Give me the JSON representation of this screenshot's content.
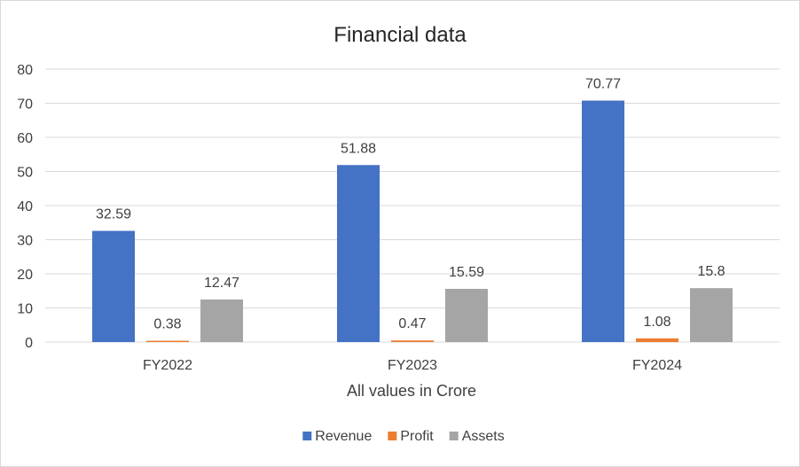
{
  "chart_data": {
    "type": "bar",
    "title": "Financial data",
    "xlabel": "All values in Crore",
    "ylabel": "",
    "categories": [
      "FY2022",
      "FY2023",
      "FY2024"
    ],
    "series": [
      {
        "name": "Revenue",
        "values": [
          32.59,
          51.88,
          70.77
        ],
        "color": "#4472c4"
      },
      {
        "name": "Profit",
        "values": [
          0.38,
          0.47,
          1.08
        ],
        "color": "#ed7d31"
      },
      {
        "name": "Assets",
        "values": [
          12.47,
          15.59,
          15.8
        ],
        "color": "#a5a5a5"
      }
    ],
    "ylim": [
      0,
      80
    ],
    "yticks": [
      0,
      10,
      20,
      30,
      40,
      50,
      60,
      70,
      80
    ],
    "grid": true,
    "legend": "bottom",
    "data_labels": true
  }
}
